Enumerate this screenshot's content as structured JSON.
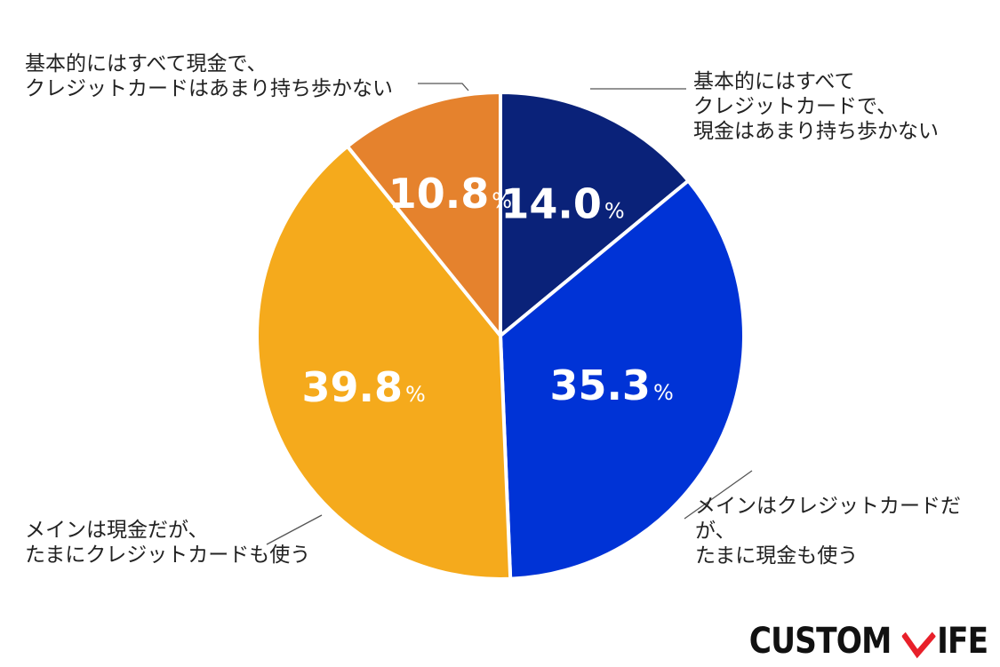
{
  "chart_data": {
    "type": "pie",
    "unit": "%",
    "slices": [
      {
        "label": "基本的にはすべて\nクレジットカードで、\n現金はあまり持ち歩かない",
        "value": 14.0,
        "color": "#0a2279"
      },
      {
        "label": "メインはクレジットカードだが、\nたまに現金も使う",
        "value": 35.3,
        "color": "#0033d6"
      },
      {
        "label": "メインは現金だが、\nたまにクレジットカードも使う",
        "value": 39.8,
        "color": "#f5aa1c"
      },
      {
        "label": "基本的にはすべて現金で、\nクレジットカードはあまり持ち歩かない",
        "value": 10.8,
        "color": "#e5822d"
      }
    ],
    "start": "12 o'clock",
    "direction": "clockwise"
  },
  "brand": {
    "logo_text_left": "CUSTOM",
    "logo_text_right": "IFE",
    "accent_color": "#e8202a"
  }
}
